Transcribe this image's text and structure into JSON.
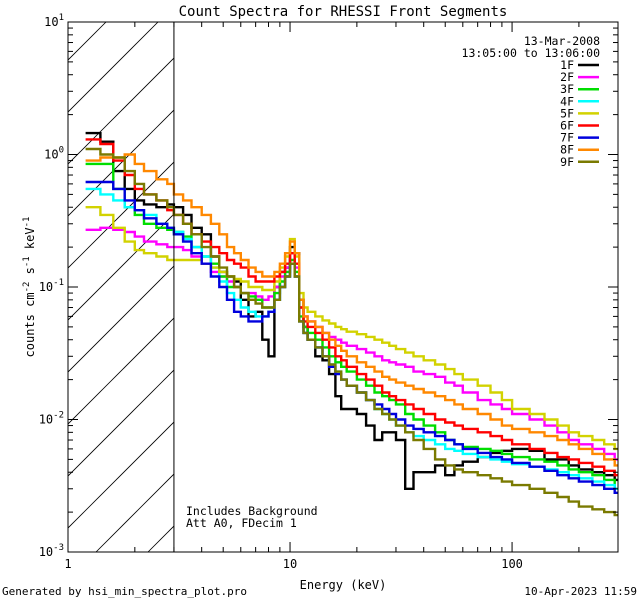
{
  "footer": {
    "generated": "Generated by hsi_min_spectra_plot.pro",
    "date": "10-Apr-2023 11:59"
  },
  "chart_data": {
    "type": "line",
    "title": "Count Spectra for RHESSI Front Segments",
    "xlabel": "Energy (keV)",
    "ylabel": "counts cm-2 s-1 keV-1",
    "xscale": "log",
    "yscale": "log",
    "xlim": [
      1,
      300
    ],
    "ylim": [
      0.001,
      10
    ],
    "x_ticks": [
      {
        "v": 1,
        "label": "1"
      },
      {
        "v": 10,
        "label": "10"
      },
      {
        "v": 100,
        "label": "100"
      }
    ],
    "y_ticks": [
      {
        "v": 0.001,
        "base": "10",
        "exp": "-3"
      },
      {
        "v": 0.01,
        "base": "10",
        "exp": "-2"
      },
      {
        "v": 0.1,
        "base": "10",
        "exp": "-1"
      },
      {
        "v": 1,
        "base": "10",
        "exp": "0"
      },
      {
        "v": 10,
        "base": "10",
        "exp": "1"
      }
    ],
    "shaded_region": {
      "x": [
        1,
        3
      ],
      "style": "hatched",
      "boundary_x": 3
    },
    "date_label": "13-Mar-2008",
    "time_label": "13:05:00 to 13:06:00",
    "annotations": [
      "Includes Background",
      "Att A0, FDecim 1"
    ],
    "x": [
      1.2,
      1.4,
      1.6,
      1.8,
      2.0,
      2.2,
      2.5,
      2.8,
      3.0,
      3.3,
      3.6,
      4.0,
      4.4,
      4.8,
      5.2,
      5.6,
      6.0,
      6.5,
      7.0,
      7.5,
      8.0,
      8.5,
      9.0,
      9.5,
      10.0,
      10.5,
      11.0,
      11.5,
      12.0,
      13.0,
      14.0,
      15.0,
      16.0,
      17.0,
      18.0,
      20.0,
      22.0,
      24.0,
      26.0,
      28.0,
      30.0,
      33.0,
      36.0,
      40.0,
      45.0,
      50.0,
      55.0,
      60.0,
      70.0,
      80.0,
      90.0,
      100.0,
      120.0,
      140.0,
      160.0,
      180.0,
      200.0,
      230.0,
      260.0,
      290.0
    ],
    "series": [
      {
        "name": "1F",
        "color": "#000000",
        "values": [
          1.45,
          1.25,
          0.75,
          0.55,
          0.45,
          0.42,
          0.4,
          0.42,
          0.4,
          0.35,
          0.28,
          0.25,
          0.17,
          0.13,
          0.12,
          0.11,
          0.08,
          0.06,
          0.065,
          0.04,
          0.03,
          0.1,
          0.13,
          0.14,
          0.2,
          0.18,
          0.08,
          0.05,
          0.04,
          0.03,
          0.028,
          0.022,
          0.015,
          0.012,
          0.012,
          0.011,
          0.009,
          0.007,
          0.008,
          0.008,
          0.007,
          0.003,
          0.004,
          0.004,
          0.0045,
          0.0038,
          0.0045,
          0.0048,
          0.0052,
          0.0056,
          0.0058,
          0.006,
          0.0058,
          0.005,
          0.005,
          0.0045,
          0.0042,
          0.004,
          0.0038,
          0.0035
        ]
      },
      {
        "name": "2F",
        "color": "#ff00ff",
        "values": [
          0.27,
          0.28,
          0.27,
          0.26,
          0.24,
          0.22,
          0.21,
          0.2,
          0.2,
          0.19,
          0.17,
          0.15,
          0.13,
          0.12,
          0.11,
          0.1,
          0.09,
          0.09,
          0.085,
          0.08,
          0.085,
          0.1,
          0.12,
          0.14,
          0.18,
          0.14,
          0.07,
          0.06,
          0.055,
          0.05,
          0.045,
          0.042,
          0.04,
          0.038,
          0.036,
          0.034,
          0.032,
          0.03,
          0.028,
          0.027,
          0.026,
          0.025,
          0.023,
          0.022,
          0.021,
          0.019,
          0.018,
          0.016,
          0.014,
          0.013,
          0.012,
          0.011,
          0.01,
          0.009,
          0.008,
          0.007,
          0.0065,
          0.006,
          0.0055,
          0.005
        ]
      },
      {
        "name": "3F",
        "color": "#00dd00",
        "values": [
          0.85,
          0.85,
          0.55,
          0.4,
          0.35,
          0.3,
          0.28,
          0.27,
          0.26,
          0.24,
          0.2,
          0.17,
          0.15,
          0.12,
          0.1,
          0.1,
          0.09,
          0.085,
          0.08,
          0.07,
          0.07,
          0.09,
          0.11,
          0.13,
          0.16,
          0.13,
          0.06,
          0.05,
          0.045,
          0.04,
          0.035,
          0.03,
          0.027,
          0.025,
          0.023,
          0.02,
          0.018,
          0.016,
          0.015,
          0.014,
          0.013,
          0.011,
          0.01,
          0.009,
          0.008,
          0.007,
          0.0065,
          0.0062,
          0.006,
          0.0058,
          0.0055,
          0.0052,
          0.005,
          0.0048,
          0.0045,
          0.0042,
          0.004,
          0.0038,
          0.0035,
          0.003
        ]
      },
      {
        "name": "4F",
        "color": "#00ffff",
        "values": [
          0.55,
          0.5,
          0.45,
          0.4,
          0.38,
          0.35,
          0.3,
          0.28,
          0.26,
          0.23,
          0.2,
          0.17,
          0.14,
          0.11,
          0.09,
          0.08,
          0.07,
          0.065,
          0.06,
          0.06,
          0.065,
          0.08,
          0.1,
          0.12,
          0.15,
          0.12,
          0.055,
          0.045,
          0.04,
          0.035,
          0.03,
          0.026,
          0.023,
          0.02,
          0.018,
          0.016,
          0.014,
          0.012,
          0.011,
          0.01,
          0.009,
          0.008,
          0.0075,
          0.007,
          0.0065,
          0.006,
          0.0058,
          0.0055,
          0.0052,
          0.005,
          0.0048,
          0.0046,
          0.0044,
          0.0042,
          0.004,
          0.0038,
          0.0036,
          0.0034,
          0.0032,
          0.003
        ]
      },
      {
        "name": "5F",
        "color": "#d2d200",
        "values": [
          0.4,
          0.35,
          0.28,
          0.22,
          0.19,
          0.18,
          0.17,
          0.16,
          0.16,
          0.16,
          0.16,
          0.15,
          0.14,
          0.13,
          0.12,
          0.115,
          0.11,
          0.1,
          0.1,
          0.095,
          0.095,
          0.11,
          0.14,
          0.17,
          0.23,
          0.17,
          0.09,
          0.07,
          0.065,
          0.06,
          0.056,
          0.053,
          0.05,
          0.048,
          0.046,
          0.044,
          0.042,
          0.04,
          0.038,
          0.036,
          0.034,
          0.032,
          0.03,
          0.028,
          0.026,
          0.024,
          0.022,
          0.02,
          0.018,
          0.016,
          0.014,
          0.012,
          0.011,
          0.01,
          0.009,
          0.008,
          0.0075,
          0.007,
          0.0065,
          0.006
        ]
      },
      {
        "name": "6F",
        "color": "#ff0000",
        "values": [
          1.3,
          1.2,
          0.9,
          0.7,
          0.55,
          0.5,
          0.45,
          0.38,
          0.35,
          0.3,
          0.25,
          0.22,
          0.2,
          0.18,
          0.16,
          0.15,
          0.14,
          0.12,
          0.11,
          0.11,
          0.11,
          0.12,
          0.13,
          0.15,
          0.18,
          0.15,
          0.07,
          0.055,
          0.05,
          0.045,
          0.04,
          0.035,
          0.03,
          0.028,
          0.025,
          0.022,
          0.02,
          0.018,
          0.016,
          0.015,
          0.014,
          0.013,
          0.012,
          0.011,
          0.01,
          0.0095,
          0.009,
          0.0085,
          0.008,
          0.0075,
          0.007,
          0.0065,
          0.006,
          0.0056,
          0.0052,
          0.005,
          0.0047,
          0.0044,
          0.0041,
          0.0038
        ]
      },
      {
        "name": "7F",
        "color": "#0000dd",
        "values": [
          0.62,
          0.62,
          0.55,
          0.45,
          0.38,
          0.33,
          0.3,
          0.28,
          0.25,
          0.22,
          0.18,
          0.15,
          0.12,
          0.1,
          0.08,
          0.065,
          0.06,
          0.055,
          0.055,
          0.06,
          0.065,
          0.08,
          0.1,
          0.12,
          0.15,
          0.12,
          0.055,
          0.045,
          0.04,
          0.035,
          0.03,
          0.025,
          0.022,
          0.02,
          0.018,
          0.016,
          0.014,
          0.013,
          0.012,
          0.011,
          0.01,
          0.009,
          0.0085,
          0.008,
          0.0075,
          0.007,
          0.0065,
          0.006,
          0.0056,
          0.0052,
          0.005,
          0.0047,
          0.0044,
          0.0041,
          0.0038,
          0.0036,
          0.0034,
          0.0032,
          0.003,
          0.0028
        ]
      },
      {
        "name": "8F",
        "color": "#ff8800",
        "values": [
          0.9,
          0.95,
          0.95,
          1.0,
          0.85,
          0.75,
          0.65,
          0.6,
          0.5,
          0.45,
          0.4,
          0.35,
          0.3,
          0.25,
          0.2,
          0.18,
          0.16,
          0.14,
          0.13,
          0.12,
          0.12,
          0.13,
          0.15,
          0.18,
          0.22,
          0.18,
          0.08,
          0.06,
          0.055,
          0.05,
          0.045,
          0.04,
          0.036,
          0.033,
          0.03,
          0.027,
          0.025,
          0.023,
          0.021,
          0.02,
          0.019,
          0.018,
          0.017,
          0.016,
          0.015,
          0.014,
          0.013,
          0.012,
          0.011,
          0.01,
          0.009,
          0.0085,
          0.008,
          0.0075,
          0.007,
          0.0065,
          0.006,
          0.0055,
          0.005,
          0.0045
        ]
      },
      {
        "name": "9F",
        "color": "#7a7a00",
        "values": [
          1.1,
          1.0,
          0.95,
          0.75,
          0.6,
          0.5,
          0.45,
          0.4,
          0.35,
          0.3,
          0.25,
          0.2,
          0.17,
          0.14,
          0.12,
          0.1,
          0.09,
          0.08,
          0.075,
          0.07,
          0.07,
          0.08,
          0.1,
          0.12,
          0.15,
          0.12,
          0.055,
          0.045,
          0.04,
          0.035,
          0.03,
          0.026,
          0.023,
          0.02,
          0.018,
          0.016,
          0.014,
          0.012,
          0.011,
          0.01,
          0.009,
          0.008,
          0.007,
          0.006,
          0.005,
          0.0045,
          0.0042,
          0.004,
          0.0038,
          0.0036,
          0.0034,
          0.0032,
          0.003,
          0.0028,
          0.0026,
          0.0024,
          0.0022,
          0.0021,
          0.002,
          0.0019
        ]
      }
    ]
  }
}
